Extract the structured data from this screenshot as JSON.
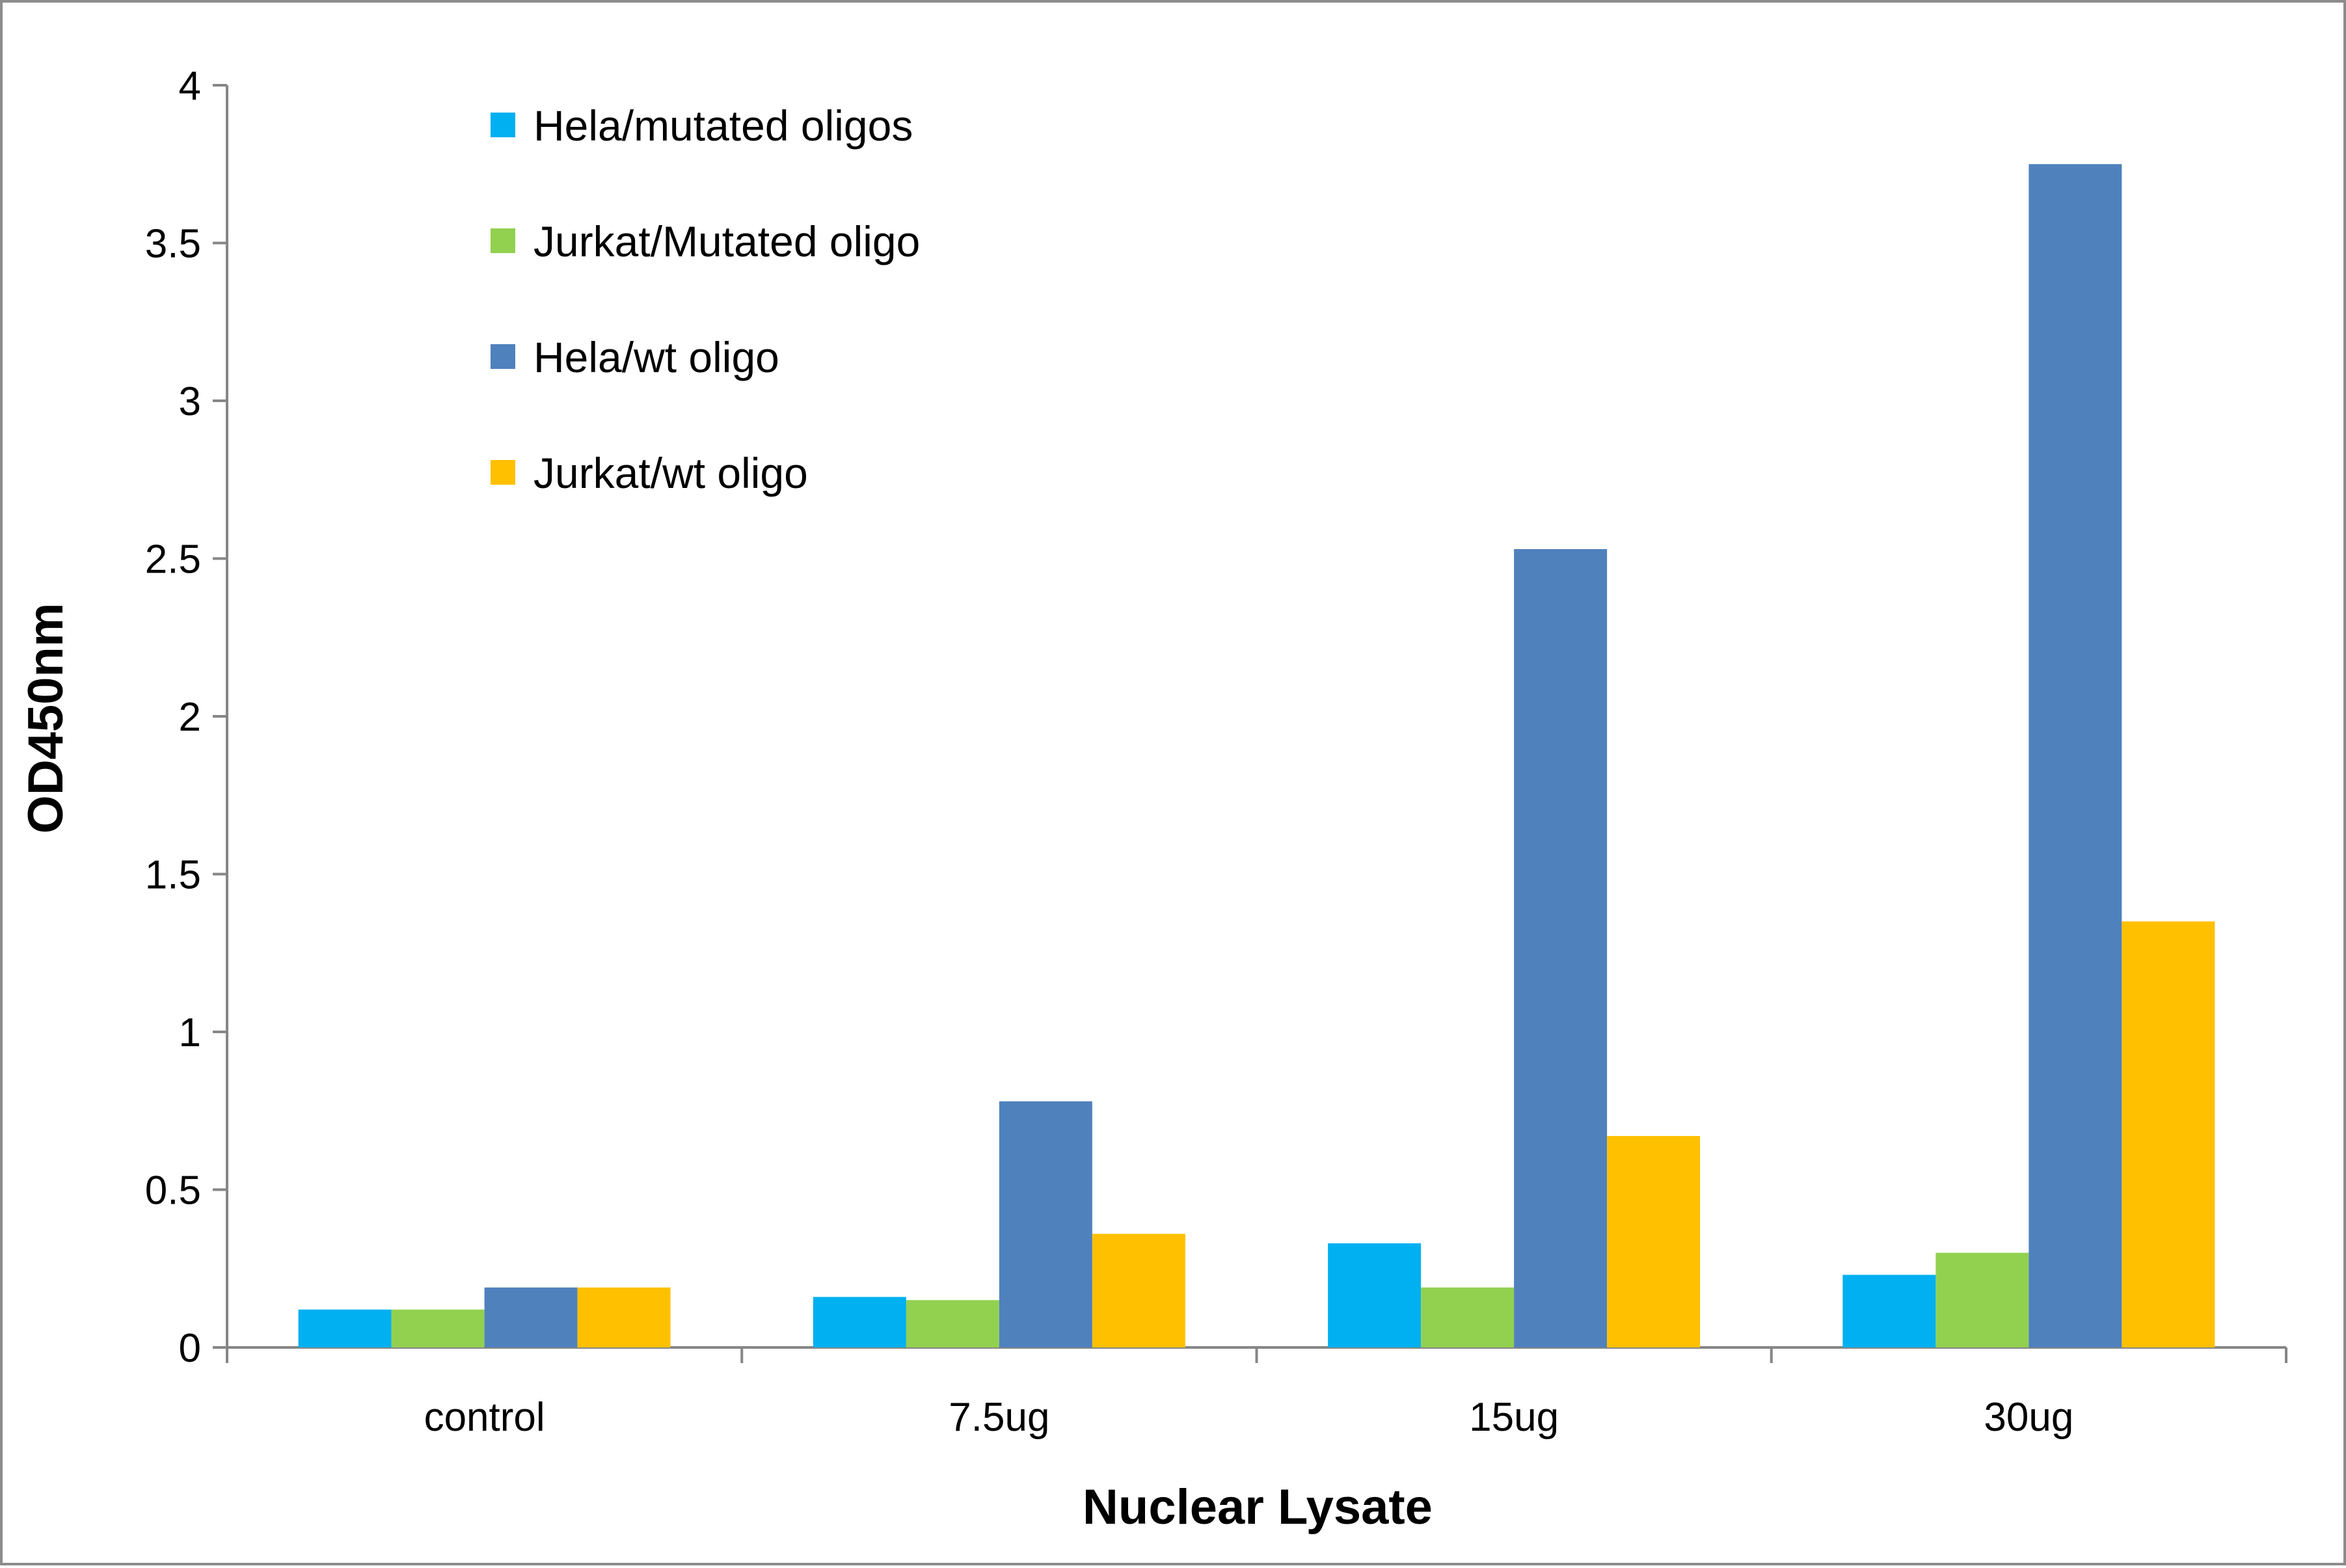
{
  "chart_data": {
    "type": "bar",
    "title": "",
    "xlabel": "Nuclear Lysate",
    "ylabel": "OD450nm",
    "ylim": [
      0,
      4
    ],
    "yticks": [
      "0",
      "0.5",
      "1",
      "1.5",
      "2",
      "2.5",
      "3",
      "3.5",
      "4"
    ],
    "grid": false,
    "legend_position": "top-left",
    "categories": [
      "control",
      "7.5ug",
      "15ug",
      "30ug"
    ],
    "series": [
      {
        "name": "Hela/mutated oligos",
        "color": "#00b0f0",
        "values": [
          0.12,
          0.16,
          0.33,
          0.23
        ]
      },
      {
        "name": "Jurkat/Mutated oligo",
        "color": "#92d050",
        "values": [
          0.12,
          0.15,
          0.19,
          0.3
        ]
      },
      {
        "name": "Hela/wt oligo",
        "color": "#4f81bd",
        "values": [
          0.19,
          0.78,
          2.53,
          3.75
        ]
      },
      {
        "name": "Jurkat/wt oligo",
        "color": "#ffc000",
        "values": [
          0.19,
          0.36,
          0.67,
          1.35
        ]
      }
    ]
  }
}
